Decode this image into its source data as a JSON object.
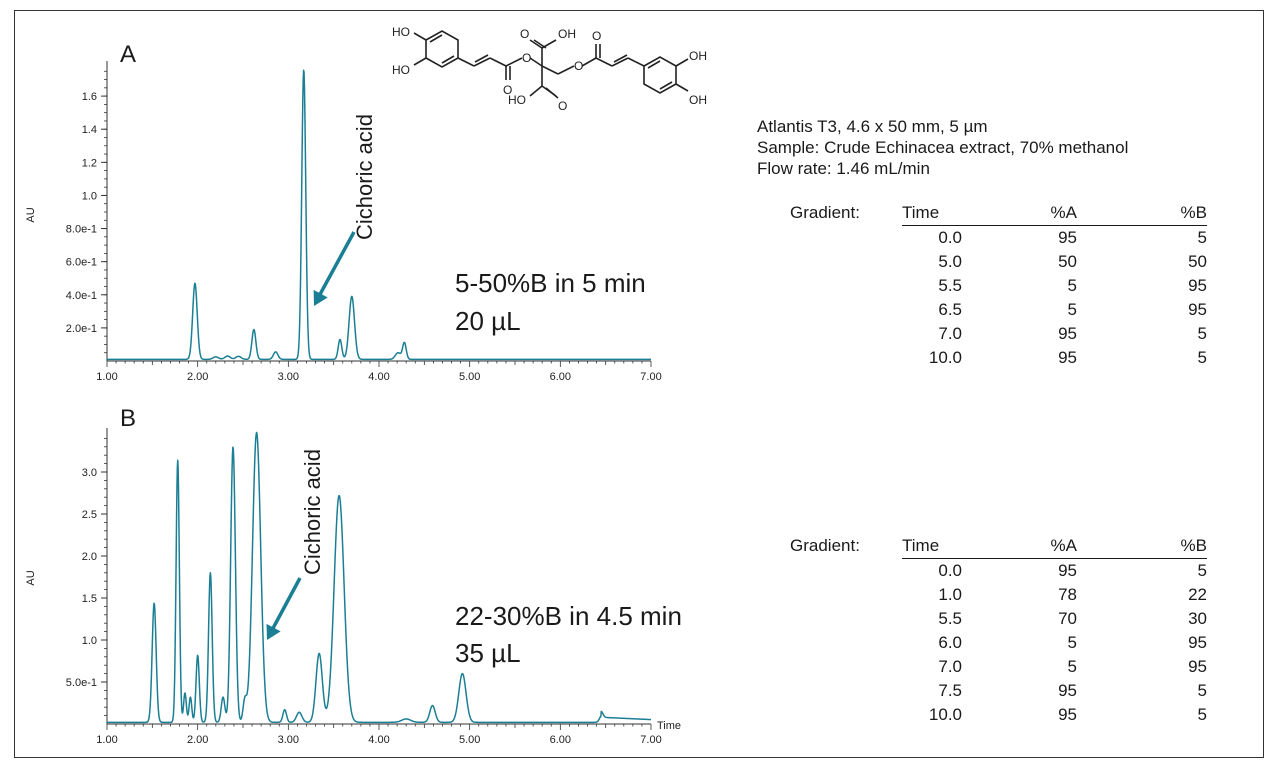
{
  "colors": {
    "trace": "#1a7f94",
    "arrow": "#1a7f94",
    "axis": "#333333",
    "text": "#1a1a1a"
  },
  "info": {
    "column": "Atlantis T3, 4.6 x 50 mm, 5 µm",
    "sample": "Sample: Crude Echinacea extract, 70% methanol",
    "flow": "Flow rate: 1.46 mL/min"
  },
  "structure": {
    "labels": [
      "HO",
      "HO",
      "O",
      "OH",
      "O",
      "O",
      "O",
      "O",
      "HO",
      "O",
      "OH",
      "OH"
    ]
  },
  "chart_data": [
    {
      "type": "line",
      "panel_label": "A",
      "ylabel": "AU",
      "xlim": [
        1.0,
        7.0
      ],
      "ylim": [
        0,
        1.8
      ],
      "x_ticks": [
        "1.00",
        "2.00",
        "3.00",
        "4.00",
        "5.00",
        "6.00",
        "7.00"
      ],
      "y_ticks": [
        {
          "value": 0.2,
          "label": "2.0e-1"
        },
        {
          "value": 0.4,
          "label": "4.0e-1"
        },
        {
          "value": 0.6,
          "label": "6.0e-1"
        },
        {
          "value": 0.8,
          "label": "8.0e-1"
        },
        {
          "value": 1.0,
          "label": "1.0"
        },
        {
          "value": 1.2,
          "label": "1.2"
        },
        {
          "value": 1.4,
          "label": "1.4"
        },
        {
          "value": 1.6,
          "label": "1.6"
        }
      ],
      "baseline": 0.01,
      "peaks": [
        {
          "t": 1.97,
          "h": 0.46,
          "w": 0.025
        },
        {
          "t": 2.2,
          "h": 0.015,
          "w": 0.03
        },
        {
          "t": 2.33,
          "h": 0.02,
          "w": 0.03
        },
        {
          "t": 2.45,
          "h": 0.018,
          "w": 0.03
        },
        {
          "t": 2.62,
          "h": 0.18,
          "w": 0.022
        },
        {
          "t": 2.86,
          "h": 0.045,
          "w": 0.025
        },
        {
          "t": 3.17,
          "h": 1.75,
          "w": 0.022
        },
        {
          "t": 3.57,
          "h": 0.12,
          "w": 0.02
        },
        {
          "t": 3.7,
          "h": 0.38,
          "w": 0.03
        },
        {
          "t": 4.21,
          "h": 0.04,
          "w": 0.03
        },
        {
          "t": 4.28,
          "h": 0.1,
          "w": 0.02
        }
      ],
      "annotation": {
        "text": "Cichoric acid",
        "t": 3.17
      },
      "conditions": [
        "5-50%B in 5 min",
        "20 µL"
      ],
      "gradient": {
        "label": "Gradient:",
        "headers": [
          "Time",
          "%A",
          "%B"
        ],
        "rows": [
          [
            "0.0",
            "95",
            "5"
          ],
          [
            "5.0",
            "50",
            "50"
          ],
          [
            "5.5",
            "5",
            "95"
          ],
          [
            "6.5",
            "5",
            "95"
          ],
          [
            "7.0",
            "95",
            "5"
          ],
          [
            "10.0",
            "95",
            "5"
          ]
        ]
      }
    },
    {
      "type": "line",
      "panel_label": "B",
      "ylabel": "AU",
      "xlabel": "Time",
      "xlim": [
        1.0,
        7.0
      ],
      "ylim": [
        0,
        3.5
      ],
      "x_ticks": [
        "1.00",
        "2.00",
        "3.00",
        "4.00",
        "5.00",
        "6.00",
        "7.00"
      ],
      "y_ticks": [
        {
          "value": 0.5,
          "label": "5.0e-1"
        },
        {
          "value": 1.0,
          "label": "1.0"
        },
        {
          "value": 1.5,
          "label": "1.5"
        },
        {
          "value": 2.0,
          "label": "2.0"
        },
        {
          "value": 2.5,
          "label": "2.5"
        },
        {
          "value": 3.0,
          "label": "3.0"
        }
      ],
      "baseline": 0.02,
      "peaks": [
        {
          "t": 1.52,
          "h": 1.42,
          "w": 0.022
        },
        {
          "t": 1.78,
          "h": 3.12,
          "w": 0.018
        },
        {
          "t": 1.86,
          "h": 0.35,
          "w": 0.015
        },
        {
          "t": 1.92,
          "h": 0.3,
          "w": 0.015
        },
        {
          "t": 2.0,
          "h": 0.8,
          "w": 0.018
        },
        {
          "t": 2.14,
          "h": 1.78,
          "w": 0.02
        },
        {
          "t": 2.28,
          "h": 0.3,
          "w": 0.02
        },
        {
          "t": 2.39,
          "h": 3.28,
          "w": 0.026
        },
        {
          "t": 2.52,
          "h": 0.25,
          "w": 0.02
        },
        {
          "t": 2.65,
          "h": 3.45,
          "w": 0.045
        },
        {
          "t": 2.96,
          "h": 0.15,
          "w": 0.02
        },
        {
          "t": 3.12,
          "h": 0.12,
          "w": 0.03
        },
        {
          "t": 3.34,
          "h": 0.82,
          "w": 0.035
        },
        {
          "t": 3.56,
          "h": 2.7,
          "w": 0.055
        },
        {
          "t": 4.3,
          "h": 0.04,
          "w": 0.05
        },
        {
          "t": 4.59,
          "h": 0.2,
          "w": 0.03
        },
        {
          "t": 4.92,
          "h": 0.58,
          "w": 0.04
        },
        {
          "t": 6.45,
          "h": 0.07,
          "w": 0.02
        }
      ],
      "tail": {
        "from": 6.45,
        "to": 7.0,
        "level": 0.06
      },
      "annotation": {
        "text": "Cichoric acid",
        "t": 2.65
      },
      "conditions": [
        "22-30%B in 4.5 min",
        "35 µL"
      ],
      "gradient": {
        "label": "Gradient:",
        "headers": [
          "Time",
          "%A",
          "%B"
        ],
        "rows": [
          [
            "0.0",
            "95",
            "5"
          ],
          [
            "1.0",
            "78",
            "22"
          ],
          [
            "5.5",
            "70",
            "30"
          ],
          [
            "6.0",
            "5",
            "95"
          ],
          [
            "7.0",
            "5",
            "95"
          ],
          [
            "7.5",
            "95",
            "5"
          ],
          [
            "10.0",
            "95",
            "5"
          ]
        ]
      }
    }
  ]
}
